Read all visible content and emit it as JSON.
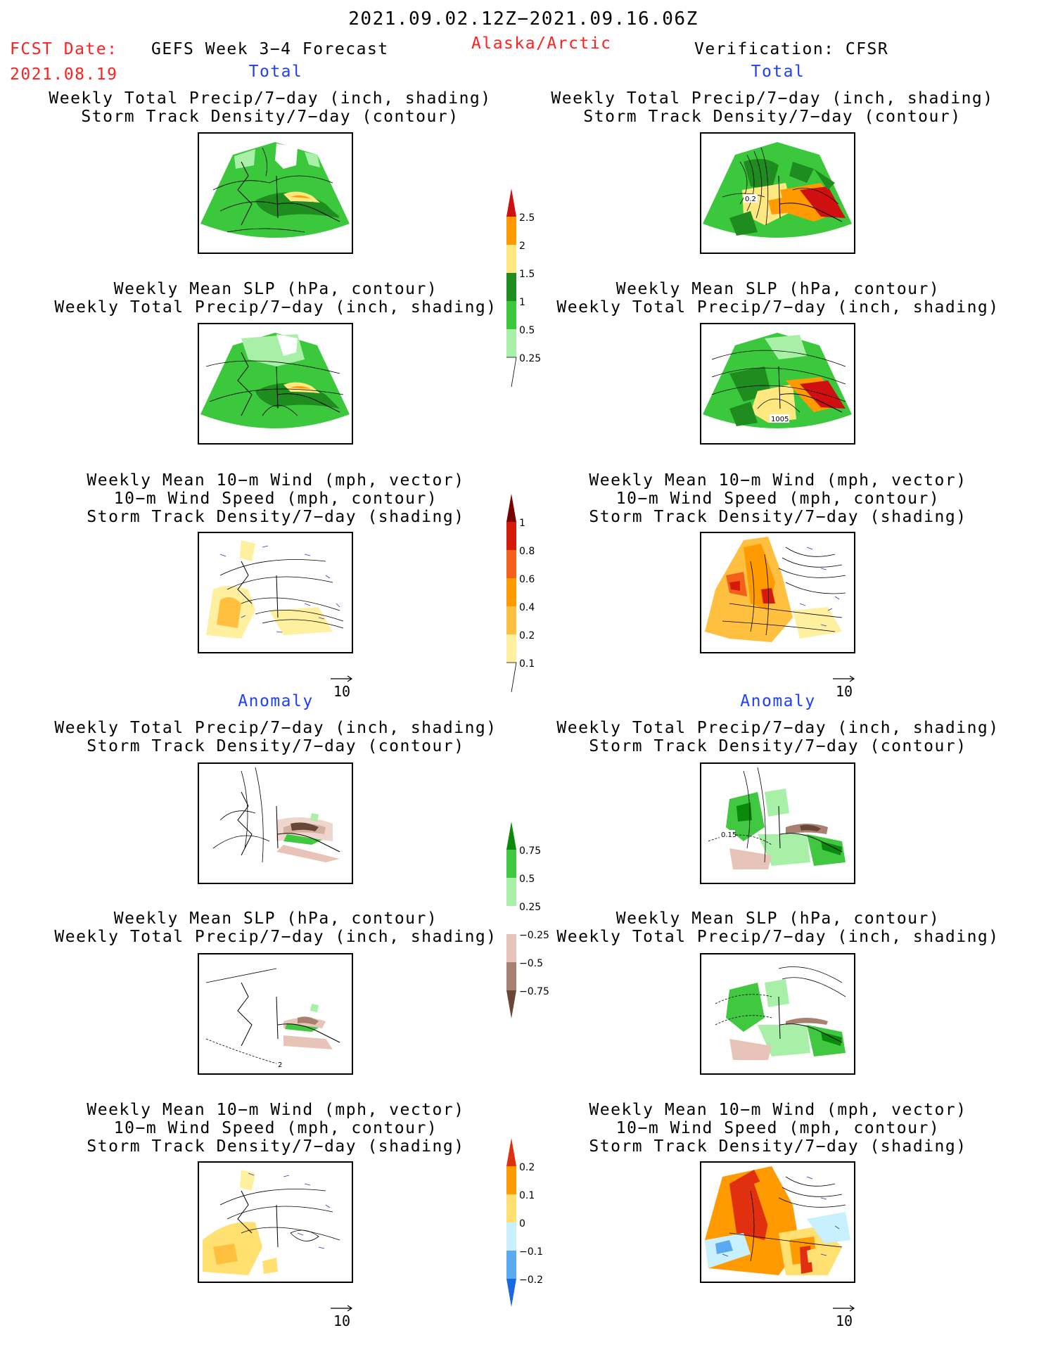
{
  "header": {
    "period": "2021.09.02.12Z−2021.09.16.06Z",
    "fcst_label": "FCST Date:",
    "fcst_date": "2021.08.19",
    "model": "GEFS Week 3−4 Forecast",
    "region": "Alaska/Arctic",
    "verification": "Verification: CFSR"
  },
  "sections": {
    "total_left": "Total",
    "total_right": "Total",
    "anomaly_left": "Anomaly",
    "anomaly_right": "Anomaly"
  },
  "titles": {
    "precip_track": [
      "Weekly Total Precip/7−day (inch, shading)",
      "Storm Track Density/7−day (contour)"
    ],
    "slp_precip": [
      "Weekly Mean SLP (hPa, contour)",
      "Weekly Total Precip/7−day (inch, shading)"
    ],
    "wind_track": [
      "Weekly Mean 10−m Wind (mph, vector)",
      "10−m Wind Speed (mph, contour)",
      "Storm Track Density/7−day (shading)"
    ]
  },
  "vector_scale": "10",
  "contour_labels": {
    "track_obs_total": "0.2",
    "slp_obs_total": "1005",
    "track_obs_anom": "0.15",
    "slp_fcst_anom": "2"
  },
  "colorbars": {
    "precip_total": {
      "ticks": [
        "2.5",
        "2",
        "1.5",
        "1",
        "0.5",
        "0.25"
      ],
      "colors": [
        "#d01010",
        "#ff9a00",
        "#ffe880",
        "#1e8c1e",
        "#3cc83c",
        "#a8f0a8"
      ]
    },
    "track_total": {
      "ticks": [
        "1",
        "0.8",
        "0.6",
        "0.4",
        "0.2",
        "0.1"
      ],
      "colors": [
        "#7a0000",
        "#d51a0a",
        "#f4601a",
        "#ff9a00",
        "#ffc040",
        "#fff0a0"
      ]
    },
    "precip_anom": {
      "ticks": [
        "0.75",
        "0.5",
        "0.25",
        "−0.25",
        "−0.5",
        "−0.75"
      ],
      "colors": [
        "#0a8a0a",
        "#40c840",
        "#a8f0a8",
        "#ffffff",
        "#e8c4b8",
        "#a88070",
        "#684638"
      ]
    },
    "track_anom": {
      "ticks": [
        "0.2",
        "0.1",
        "0",
        "−0.1",
        "−0.2"
      ],
      "colors": [
        "#e03010",
        "#ff9a00",
        "#ffe070",
        "#c8f0ff",
        "#5aaaf0",
        "#1868e0"
      ]
    }
  }
}
